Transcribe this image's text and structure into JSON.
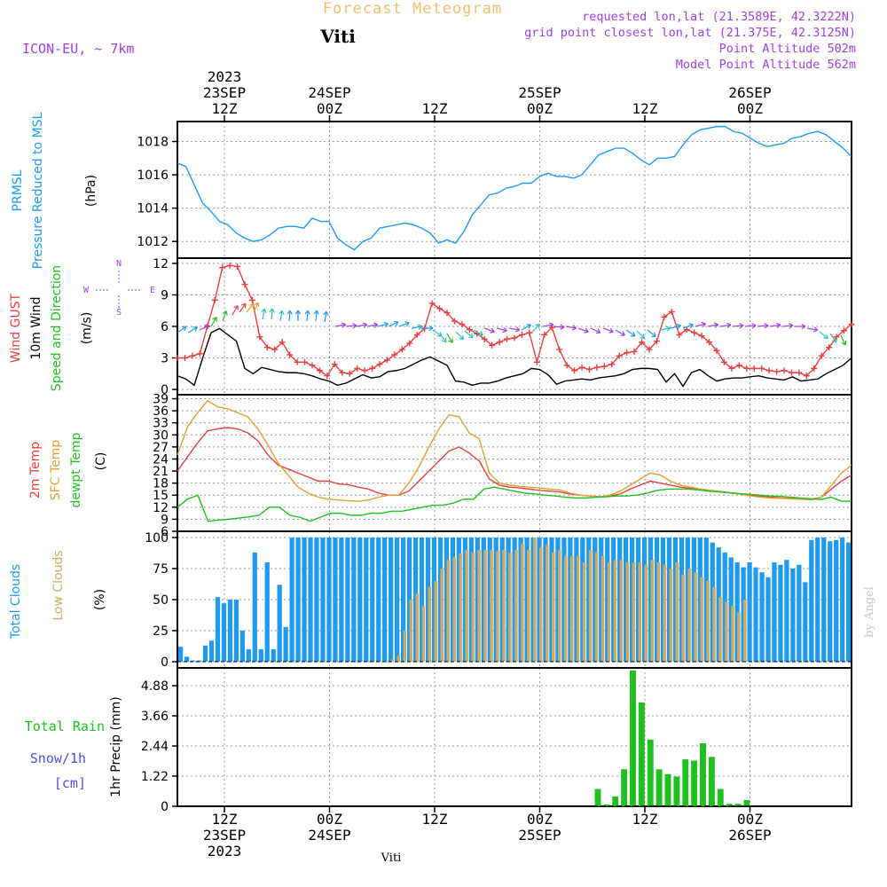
{
  "header": {
    "title": "Forecast Meteogram",
    "location": "Viti",
    "model": "ICON-EU, ~ 7km",
    "requested": "requested lon,lat (21.3589E, 42.3222N)",
    "grid_point": "grid point closest lon,lat (21.375E, 42.3125N)",
    "point_altitude": "Point Altitude 502m",
    "model_altitude": "Model Point Altitude 562m",
    "footer_location": "Viti",
    "watermark": "by Angel"
  },
  "time_axis": {
    "top_labels": [
      {
        "l1": "2023",
        "l2": "23SEP",
        "l3": "12Z"
      },
      {
        "l1": "",
        "l2": "24SEP",
        "l3": "00Z"
      },
      {
        "l1": "",
        "l2": "",
        "l3": "12Z"
      },
      {
        "l1": "",
        "l2": "25SEP",
        "l3": "00Z"
      },
      {
        "l1": "",
        "l2": "",
        "l3": "12Z"
      },
      {
        "l1": "",
        "l2": "26SEP",
        "l3": "00Z"
      }
    ],
    "bottom_labels": [
      {
        "l1": "12Z",
        "l2": "23SEP",
        "l3": "2023"
      },
      {
        "l1": "00Z",
        "l2": "24SEP",
        "l3": ""
      },
      {
        "l1": "12Z",
        "l2": "",
        "l3": ""
      },
      {
        "l1": "00Z",
        "l2": "25SEP",
        "l3": ""
      },
      {
        "l1": "12Z",
        "l2": "",
        "l3": ""
      },
      {
        "l1": "00Z",
        "l2": "26SEP",
        "l3": ""
      }
    ]
  },
  "panel_labels": {
    "pressure": {
      "l1": "PRMSL",
      "l2": "Pressure Reduced to MSL",
      "unit": "(hPa)"
    },
    "wind": {
      "l1": "Wind GUST",
      "l2": "10m Wind",
      "l3": "Speed and Direction",
      "unit": "(m/s)",
      "compass_n": "N",
      "compass_s": "S",
      "compass_w": "W",
      "compass_e": "E"
    },
    "temp": {
      "l1": "2m Temp",
      "l2": "SFC Temp",
      "l3": "dewpt Temp",
      "unit": "(C)"
    },
    "clouds": {
      "l1": "Total Clouds",
      "l2": "Low Clouds",
      "unit": "(%)"
    },
    "precip": {
      "l1": "Total Rain",
      "l2": "Snow/1h",
      "l3": "[cm]",
      "unit": "1hr Precip (mm)"
    }
  },
  "colors": {
    "pressure": "#1e9bf0",
    "gust": "#e84040",
    "wind": "#000000",
    "t2m": "#e84040",
    "sfc": "#e0a030",
    "dewpt": "#20c020",
    "total_clouds": "#1e9bf0",
    "low_clouds": "#d0aa60",
    "rain": "#20c020",
    "snow": "#5050e0",
    "purple": "#a040e0",
    "title": "#f0c070"
  },
  "chart_data": [
    {
      "type": "line",
      "name": "pressure",
      "ylim": [
        1011,
        1019.2
      ],
      "yticks": [
        1012,
        1014,
        1016,
        1018
      ],
      "x_start_hours": 0,
      "x_step_hours": 1,
      "series": [
        {
          "name": "PRMSL",
          "values": [
            1016.7,
            1016.5,
            1015.4,
            1014.3,
            1013.8,
            1013.2,
            1013.0,
            1012.5,
            1012.2,
            1012.0,
            1012.1,
            1012.4,
            1012.8,
            1012.9,
            1012.9,
            1012.8,
            1013.4,
            1013.2,
            1013.2,
            1012.2,
            1011.8,
            1011.5,
            1012.0,
            1012.2,
            1012.8,
            1012.9,
            1013.0,
            1013.1,
            1013.0,
            1012.8,
            1012.5,
            1011.9,
            1012.1,
            1011.9,
            1012.6,
            1013.6,
            1014.2,
            1014.8,
            1014.9,
            1015.2,
            1015.3,
            1015.5,
            1015.5,
            1015.9,
            1016.1,
            1015.9,
            1015.9,
            1015.8,
            1016.0,
            1016.6,
            1017.2,
            1017.4,
            1017.6,
            1017.6,
            1017.3,
            1016.9,
            1016.6,
            1017.0,
            1017.0,
            1017.1,
            1017.8,
            1018.4,
            1018.7,
            1018.8,
            1018.9,
            1018.9,
            1018.6,
            1018.5,
            1018.2,
            1017.9,
            1017.7,
            1017.8,
            1017.9,
            1018.2,
            1018.3,
            1018.5,
            1018.6,
            1018.4,
            1018.0,
            1017.6,
            1017.1
          ]
        }
      ]
    },
    {
      "type": "line",
      "name": "wind",
      "ylim": [
        -0.5,
        12.5
      ],
      "yticks": [
        0,
        3,
        6,
        9,
        12
      ],
      "series": [
        {
          "name": "Wind GUST",
          "values": [
            3.0,
            3.0,
            3.2,
            3.4,
            6.0,
            8.5,
            11.6,
            11.8,
            11.7,
            10.0,
            8.5,
            5.0,
            4.0,
            3.8,
            4.5,
            3.3,
            2.6,
            2.6,
            2.3,
            1.8,
            1.3,
            2.4,
            1.6,
            1.5,
            2.0,
            1.8,
            2.0,
            2.4,
            2.8,
            3.3,
            3.8,
            4.4,
            5.2,
            5.8,
            8.2,
            7.7,
            7.3,
            6.5,
            6.2,
            5.7,
            5.3,
            4.8,
            4.2,
            4.5,
            4.8,
            4.9,
            5.2,
            5.4,
            2.6,
            5.2,
            5.9,
            3.8,
            2.3,
            1.8,
            2.1,
            1.9,
            2.1,
            2.2,
            2.4,
            3.2,
            3.5,
            3.6,
            4.5,
            3.8,
            4.6,
            6.9,
            7.4,
            5.2,
            5.7,
            5.4,
            5.1,
            4.5,
            3.7,
            2.6,
            2.0,
            2.3,
            2.0,
            2.0,
            2.0,
            1.8,
            1.7,
            1.8,
            1.6,
            1.6,
            1.3,
            2.0,
            3.2,
            4.0,
            5.0,
            5.6,
            6.2
          ]
        },
        {
          "name": "10m Wind",
          "values": [
            1.3,
            1.0,
            0.4,
            3.0,
            5.4,
            5.8,
            5.2,
            4.6,
            2.0,
            1.5,
            2.1,
            1.9,
            1.7,
            1.6,
            1.6,
            1.5,
            1.3,
            1.0,
            0.8,
            0.4,
            0.6,
            1.0,
            1.4,
            1.1,
            1.2,
            1.7,
            1.8,
            2.0,
            2.4,
            2.8,
            3.1,
            2.7,
            2.3,
            0.8,
            0.7,
            0.4,
            0.6,
            0.6,
            0.8,
            1.1,
            1.3,
            1.5,
            2.0,
            1.9,
            1.4,
            0.5,
            0.8,
            0.9,
            1.0,
            0.9,
            1.1,
            1.2,
            1.3,
            1.5,
            1.9,
            2.0,
            2.0,
            1.9,
            0.7,
            1.5,
            0.3,
            1.6,
            1.9,
            1.3,
            0.8,
            1.0,
            1.1,
            1.1,
            1.2,
            1.3,
            1.1,
            1.0,
            0.9,
            1.2,
            0.8,
            0.9,
            1.0,
            1.5,
            1.9,
            2.3,
            3.0
          ]
        }
      ]
    },
    {
      "type": "line",
      "name": "temperature",
      "ylim": [
        6,
        40
      ],
      "yticks": [
        6,
        9,
        12,
        15,
        18,
        21,
        24,
        27,
        30,
        33,
        36,
        39
      ],
      "series": [
        {
          "name": "2m Temp",
          "values": [
            21.0,
            24.5,
            28.0,
            31.0,
            31.5,
            31.8,
            31.5,
            30.5,
            28.5,
            25.0,
            22.5,
            21.5,
            20.5,
            19.5,
            18.5,
            18.5,
            17.8,
            17.6,
            17.0,
            16.5,
            15.5,
            15.0,
            15.0,
            16.0,
            18.5,
            21.0,
            23.5,
            26.0,
            27.0,
            25.5,
            23.5,
            19.0,
            17.5,
            17.0,
            16.8,
            16.5,
            16.2,
            16.0,
            15.8,
            15.3,
            15.0,
            14.8,
            14.6,
            14.8,
            15.3,
            16.5,
            17.5,
            18.5,
            18.0,
            17.5,
            17.0,
            16.7,
            16.5,
            16.2,
            15.9,
            15.6,
            15.3,
            15.0,
            14.7,
            14.5,
            14.3,
            14.2,
            14.0,
            14.0,
            14.5,
            16.5,
            18.5,
            20.0
          ]
        },
        {
          "name": "SFC Temp",
          "values": [
            25.0,
            32.0,
            35.5,
            38.5,
            37.0,
            36.5,
            35.5,
            34.5,
            31.5,
            27.5,
            23.0,
            20.0,
            17.0,
            15.5,
            14.5,
            14.0,
            13.8,
            13.6,
            13.5,
            13.8,
            14.5,
            15.0,
            15.0,
            18.0,
            22.0,
            27.0,
            31.5,
            35.0,
            34.5,
            30.5,
            29.0,
            20.5,
            18.0,
            17.5,
            17.2,
            17.0,
            16.8,
            16.5,
            16.3,
            15.5,
            15.0,
            14.8,
            14.6,
            15.0,
            16.0,
            17.5,
            19.0,
            20.5,
            20.0,
            18.5,
            17.5,
            17.0,
            16.5,
            16.2,
            15.8,
            15.5,
            15.2,
            14.8,
            14.5,
            14.3,
            14.2,
            14.1,
            14.0,
            13.8,
            14.5,
            17.5,
            20.5,
            22.5
          ]
        },
        {
          "name": "dewpt Temp",
          "values": [
            12.0,
            14.0,
            15.0,
            8.5,
            8.8,
            9.0,
            9.3,
            9.6,
            10.0,
            12.0,
            12.0,
            10.0,
            9.5,
            8.5,
            9.5,
            10.5,
            10.5,
            10.0,
            10.0,
            10.5,
            10.5,
            11.0,
            11.0,
            11.5,
            12.0,
            12.5,
            12.5,
            13.0,
            14.0,
            14.0,
            16.5,
            17.0,
            16.5,
            16.0,
            15.5,
            15.3,
            15.0,
            14.8,
            14.5,
            14.3,
            14.3,
            14.5,
            14.6,
            14.8,
            14.8,
            15.0,
            15.5,
            16.2,
            16.5,
            16.5,
            16.5,
            16.3,
            16.0,
            15.8,
            15.6,
            15.4,
            15.2,
            15.0,
            14.8,
            14.7,
            14.5,
            14.3,
            14.1,
            13.9,
            14.5,
            13.5,
            13.5
          ]
        }
      ]
    },
    {
      "type": "bar",
      "name": "clouds",
      "ylim": [
        -5,
        105
      ],
      "yticks": [
        0,
        25,
        50,
        75,
        100
      ],
      "series": [
        {
          "name": "Total Clouds",
          "values": [
            12,
            4,
            1,
            1,
            13,
            17,
            52,
            47,
            50,
            50,
            25,
            10,
            88,
            10,
            80,
            10,
            62,
            28,
            100,
            100,
            100,
            100,
            100,
            100,
            100,
            100,
            100,
            100,
            100,
            100,
            100,
            100,
            100,
            100,
            100,
            100,
            100,
            100,
            100,
            100,
            100,
            100,
            100,
            100,
            100,
            100,
            100,
            100,
            100,
            100,
            100,
            100,
            100,
            100,
            100,
            100,
            100,
            100,
            100,
            100,
            100,
            100,
            100,
            100,
            100,
            100,
            100,
            100,
            100,
            100,
            100,
            100,
            100,
            100,
            100,
            100,
            100,
            100,
            100,
            100,
            100,
            100,
            100,
            100,
            100,
            100,
            96,
            92,
            88,
            84,
            80,
            76,
            80,
            76,
            72,
            68,
            80,
            78,
            82,
            75,
            78,
            64,
            98,
            100,
            100,
            97,
            98,
            100,
            96
          ]
        },
        {
          "name": "Low Clouds",
          "values": [
            0,
            0,
            0,
            0,
            0,
            0,
            0,
            0,
            0,
            0,
            0,
            0,
            0,
            0,
            0,
            0,
            0,
            0,
            0,
            0,
            0,
            0,
            0,
            0,
            0,
            0,
            0,
            0,
            0,
            0,
            0,
            0,
            0,
            0,
            2,
            5,
            25,
            50,
            55,
            45,
            60,
            65,
            75,
            82,
            84,
            87,
            90,
            88,
            90,
            90,
            90,
            89,
            90,
            88,
            90,
            95,
            90,
            100,
            92,
            94,
            88,
            90,
            85,
            85,
            85,
            80,
            90,
            88,
            85,
            80,
            82,
            82,
            80,
            80,
            80,
            78,
            82,
            80,
            78,
            75,
            80,
            70,
            75,
            72,
            68,
            65,
            60,
            52,
            48,
            45,
            40,
            50
          ]
        }
      ]
    },
    {
      "type": "bar",
      "name": "precip",
      "ylim": [
        0,
        5.6
      ],
      "yticks": [
        0,
        1.22,
        2.44,
        3.66,
        4.88
      ],
      "series": [
        {
          "name": "Total Rain",
          "start_index": 48,
          "values": [
            0.7,
            0.0,
            0.4,
            1.5,
            5.5,
            4.2,
            2.7,
            1.5,
            1.3,
            1.2,
            1.9,
            1.85,
            2.55,
            2.0,
            0.7,
            0.1,
            0.1,
            0.25
          ]
        },
        {
          "name": "Total Rain (second)",
          "start_index": 84,
          "values": [
            0.1,
            0.1,
            0.1,
            1.15,
            1.25,
            1.0,
            0.9,
            0.6,
            0.3
          ]
        },
        {
          "name": "Snow/1h",
          "values": []
        }
      ]
    }
  ]
}
